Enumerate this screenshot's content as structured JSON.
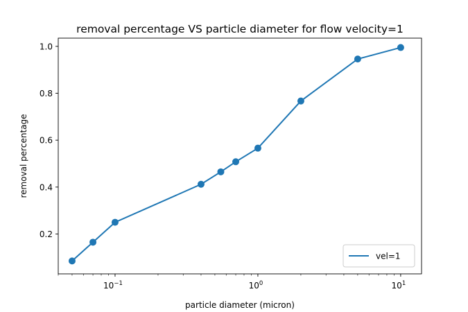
{
  "chart_data": {
    "type": "line",
    "title": "removal percentage VS particle diameter for flow velocity=1",
    "xlabel": "particle diameter (micron)",
    "ylabel": "removal percentage",
    "xscale": "log",
    "xlim": [
      0.04,
      14
    ],
    "ylim": [
      0.03,
      1.035
    ],
    "x_ticks": [
      {
        "value": 0.1,
        "base": "10",
        "exp": "−1"
      },
      {
        "value": 1,
        "base": "10",
        "exp": "0"
      },
      {
        "value": 10,
        "base": "10",
        "exp": "1"
      }
    ],
    "y_ticks": [
      {
        "value": 0.2,
        "label": "0.2"
      },
      {
        "value": 0.4,
        "label": "0.4"
      },
      {
        "value": 0.6,
        "label": "0.6"
      },
      {
        "value": 0.8,
        "label": "0.8"
      },
      {
        "value": 1.0,
        "label": "1.0"
      }
    ],
    "grid": false,
    "legend": {
      "position": "lower right"
    },
    "series": [
      {
        "name": "vel=1",
        "color": "#1f77b4",
        "marker": "circle",
        "x": [
          0.05,
          0.07,
          0.1,
          0.4,
          0.55,
          0.7,
          1.0,
          2.0,
          5.0,
          10.0
        ],
        "y": [
          0.085,
          0.165,
          0.25,
          0.412,
          0.465,
          0.508,
          0.566,
          0.767,
          0.946,
          0.995
        ]
      }
    ]
  }
}
